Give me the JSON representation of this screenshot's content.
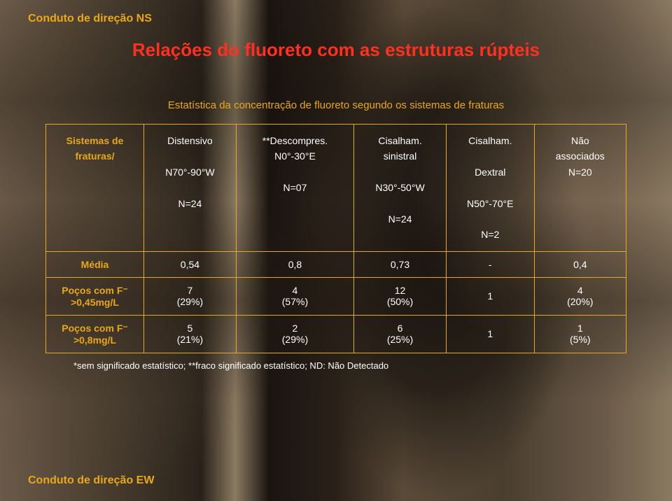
{
  "header_label": "Conduto de direção NS",
  "title": "Relações do fluoreto com as estruturas rúpteis",
  "subtitle": "Estatística da concentração de fluoreto segundo os sistemas de fraturas",
  "table": {
    "row_header_label": "Sistemas de fraturas/",
    "columns": [
      "Distensivo\n\nN70°-90°W\n\nN=24",
      "**Descompres.\nN0°-30°E\n\nN=07",
      "Cisalham.\nsinistral\n\nN30°-50°W\n\nN=24",
      "Cisalham.\n\nDextral\n\nN50°-70°E\n\nN=2",
      "Não\nassociados\nN=20"
    ],
    "rows": [
      {
        "label": "Média",
        "cells": [
          "0,54",
          "0,8",
          "0,73",
          "-",
          "0,4"
        ]
      },
      {
        "label": "Poços com F⁻\n>0,45mg/L",
        "cells": [
          "7\n(29%)",
          "4\n(57%)",
          "12\n(50%)",
          "1",
          "4\n(20%)"
        ]
      },
      {
        "label": "Poços com F⁻\n>0,8mg/L",
        "cells": [
          "5\n(21%)",
          "2\n(29%)",
          "6\n(25%)",
          "1",
          "1\n(5%)"
        ]
      }
    ]
  },
  "footnote": "*sem significado estatístico; **fraco significado estatístico; ND: Não Detectado",
  "footer_label": "Conduto de direção EW",
  "colors": {
    "accent": "#e8a818",
    "title": "#ff3020",
    "text": "#ffffff",
    "border": "#e8a818"
  }
}
